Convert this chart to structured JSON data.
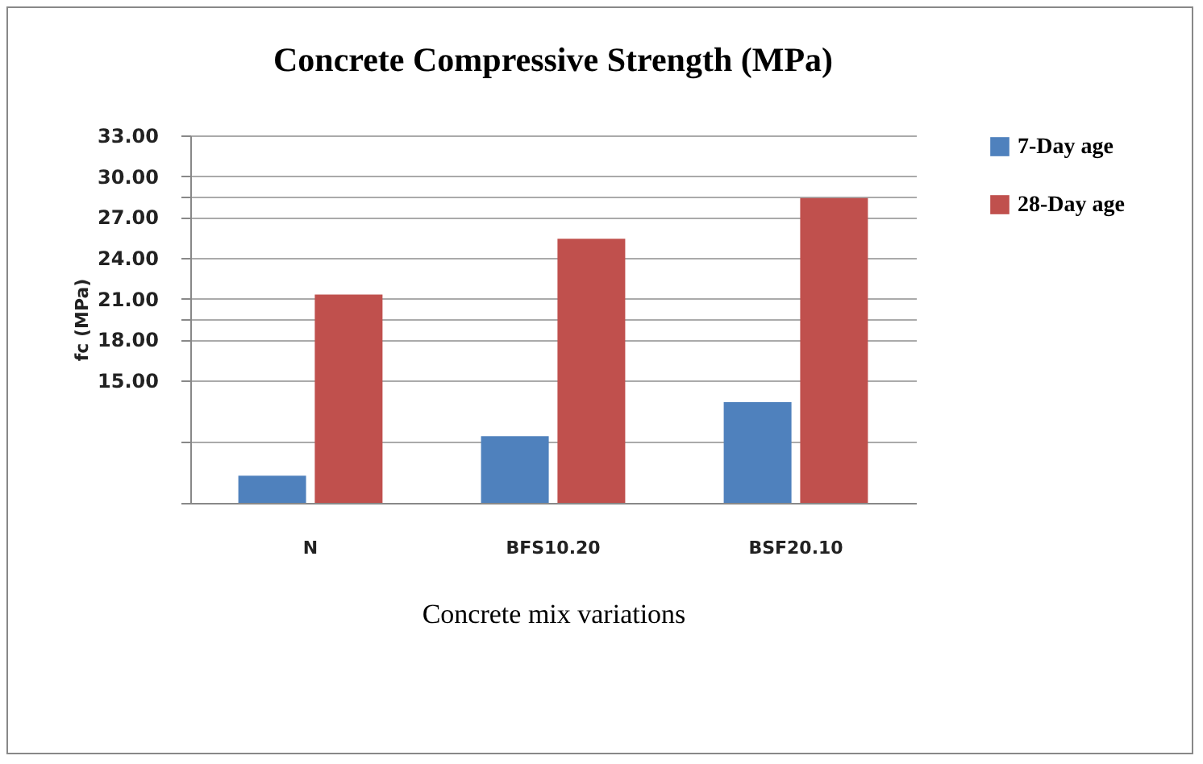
{
  "chart_data": {
    "type": "bar",
    "title": "Concrete Compressive Strength (MPa)",
    "xlabel": "Concrete mix variations",
    "ylabel": "fc (MPa)",
    "categories": [
      "N",
      "BFS10.20",
      "BSF20.10"
    ],
    "series": [
      {
        "name": "7-Day age",
        "color": "#4f81bd",
        "values": [
          8.0,
          10.9,
          13.4
        ]
      },
      {
        "name": "28-Day age",
        "color": "#c0504d",
        "values": [
          21.3,
          25.4,
          28.4
        ]
      }
    ],
    "ylim": [
      6,
      33
    ],
    "yticks": [
      {
        "value": 6,
        "label": null
      },
      {
        "value": 10.5,
        "label": null
      },
      {
        "value": 15,
        "label": "15.00"
      },
      {
        "value": 18,
        "label": "18.00"
      },
      {
        "value": 19.5,
        "label": null
      },
      {
        "value": 21,
        "label": "21.00"
      },
      {
        "value": 24,
        "label": "24.00"
      },
      {
        "value": 27,
        "label": "27.00"
      },
      {
        "value": 28.5,
        "label": null
      },
      {
        "value": 30,
        "label": "30.00"
      },
      {
        "value": 33,
        "label": "33.00"
      }
    ],
    "grid": true,
    "legend": "right"
  }
}
